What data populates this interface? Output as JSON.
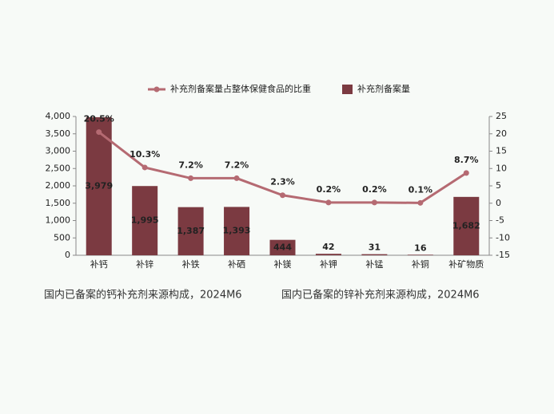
{
  "chart_data": {
    "type": "bar_line",
    "categories": [
      "补钙",
      "补锌",
      "补铁",
      "补硒",
      "补镁",
      "补钾",
      "补锰",
      "补铜",
      "补矿物质"
    ],
    "series": [
      {
        "name": "补充剂备案量占整体保健食品的比重",
        "color": "#b56a72",
        "type": "line",
        "axis": "y2",
        "values": [
          20.5,
          10.3,
          7.2,
          7.2,
          2.3,
          0.2,
          0.2,
          0.1,
          8.7
        ],
        "value_labels": [
          "20.5%",
          "10.3%",
          "7.2%",
          "7.2%",
          "2.3%",
          "0.2%",
          "0.2%",
          "0.1%",
          "8.7%"
        ]
      },
      {
        "name": "补充剂备案量",
        "color": "#7b3a41",
        "type": "bar",
        "values": [
          3979,
          1995,
          1387,
          1393,
          444,
          42,
          31,
          16,
          1682
        ],
        "value_labels": [
          "3,979",
          "1,995",
          "1,387",
          "1,393",
          "444",
          "42",
          "31",
          "16",
          "1,682"
        ]
      }
    ],
    "ylim": [
      0,
      4000
    ],
    "yticks": [
      0,
      500,
      {
        "value": 1000,
        "label": "1,000"
      },
      {
        "value": 1500,
        "label": "1,500"
      },
      {
        "value": 2000,
        "label": "2,000"
      },
      {
        "value": 2500,
        "label": "2,500"
      },
      {
        "value": 3000,
        "label": "3,000"
      },
      {
        "value": 3500,
        "label": "3,500"
      },
      {
        "value": 4000,
        "label": "4,000"
      }
    ],
    "y2lim": [
      -15,
      25
    ],
    "y2ticks": [
      -15,
      -10,
      -5,
      0,
      5,
      10,
      15,
      20,
      25
    ],
    "legend": "top"
  },
  "captions": [
    "国内已备案的钙补充剂来源构成，2024M6",
    "国内已备案的锌补充剂来源构成，2024M6"
  ]
}
